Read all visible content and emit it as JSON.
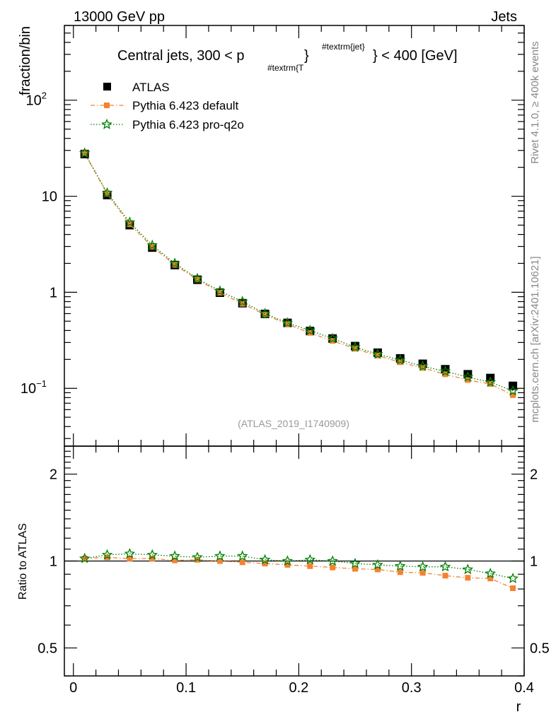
{
  "header": {
    "left": "13000 GeV pp",
    "right": "Jets"
  },
  "side_labels": {
    "rivet": "Rivet 4.1.0, ≥ 400k events",
    "mcplots": "mcplots.cern.ch [arXiv:2401.10621]"
  },
  "colors": {
    "atlas": "#000000",
    "pythia_default": "#f58231",
    "pythia_proq2o": "#008000",
    "side_text": "#888888"
  },
  "chart_data": [
    {
      "type": "scatter",
      "title_parts": {
        "a": "Central jets, 300 < p",
        "sub": "#textrm{T",
        "close": "}",
        "sup": "#textrm{jet}",
        "b": "} < 400 [GeV]"
      },
      "ref_label": "(ATLAS_2019_I1740909)",
      "ylabel": "fraction/bin",
      "yscale": "log",
      "ylim": [
        0.025,
        600
      ],
      "xlim": [
        -0.008,
        0.4
      ],
      "yticks": [
        {
          "value": 0.1,
          "base": "10",
          "exp": "−1"
        },
        {
          "value": 1,
          "label": "1"
        },
        {
          "value": 10,
          "label": "10"
        },
        {
          "value": 100,
          "base": "10",
          "exp": "2"
        }
      ],
      "x": [
        0.01,
        0.03,
        0.05,
        0.07,
        0.09,
        0.11,
        0.13,
        0.15,
        0.17,
        0.19,
        0.21,
        0.23,
        0.25,
        0.27,
        0.29,
        0.31,
        0.33,
        0.35,
        0.37,
        0.39
      ],
      "series": [
        {
          "name": "ATLAS",
          "marker": "square",
          "values": [
            27.5,
            10.3,
            5.0,
            2.92,
            1.92,
            1.35,
            0.99,
            0.77,
            0.595,
            0.48,
            0.395,
            0.33,
            0.275,
            0.235,
            0.205,
            0.18,
            0.158,
            0.14,
            0.128,
            0.106
          ]
        },
        {
          "name": "Pythia 6.423 default",
          "marker": "filled-square-dashdot",
          "values": [
            28.0,
            10.6,
            5.1,
            2.98,
            1.93,
            1.36,
            0.99,
            0.76,
            0.585,
            0.465,
            0.378,
            0.312,
            0.258,
            0.219,
            0.187,
            0.163,
            0.14,
            0.122,
            0.111,
            0.085
          ]
        },
        {
          "name": "Pythia 6.423 pro-q2o",
          "marker": "star-dotted",
          "values": [
            28.1,
            10.8,
            5.35,
            3.08,
            2.0,
            1.39,
            1.03,
            0.8,
            0.6,
            0.48,
            0.4,
            0.33,
            0.268,
            0.227,
            0.197,
            0.17,
            0.15,
            0.131,
            0.116,
            0.094
          ]
        }
      ]
    },
    {
      "type": "line",
      "ylabel": "Ratio to ATLAS",
      "xlabel": "r",
      "yscale": "log",
      "ylim": [
        0.4,
        2.5
      ],
      "xlim": [
        -0.008,
        0.4
      ],
      "yticks": [
        0.5,
        1,
        2
      ],
      "ytick_labels": [
        "0.5",
        "1",
        "2"
      ],
      "xticks": [
        0,
        0.1,
        0.2,
        0.3,
        0.4
      ],
      "xtick_labels": [
        "0",
        "0.1",
        "0.2",
        "0.3",
        "0.4"
      ],
      "reference": 1,
      "x": [
        0.01,
        0.03,
        0.05,
        0.07,
        0.09,
        0.11,
        0.13,
        0.15,
        0.17,
        0.19,
        0.21,
        0.23,
        0.25,
        0.27,
        0.29,
        0.31,
        0.33,
        0.35,
        0.37,
        0.39
      ],
      "series": [
        {
          "name": "Pythia 6.423 default",
          "values": [
            1.02,
            1.03,
            1.02,
            1.02,
            1.005,
            1.01,
            1.0,
            0.99,
            0.98,
            0.97,
            0.96,
            0.95,
            0.94,
            0.935,
            0.915,
            0.91,
            0.89,
            0.875,
            0.87,
            0.805
          ]
        },
        {
          "name": "Pythia 6.423 pro-q2o",
          "values": [
            1.02,
            1.05,
            1.06,
            1.05,
            1.04,
            1.03,
            1.04,
            1.04,
            1.01,
            1.0,
            1.01,
            1.0,
            0.98,
            0.97,
            0.96,
            0.955,
            0.955,
            0.935,
            0.905,
            0.87
          ]
        }
      ]
    }
  ]
}
